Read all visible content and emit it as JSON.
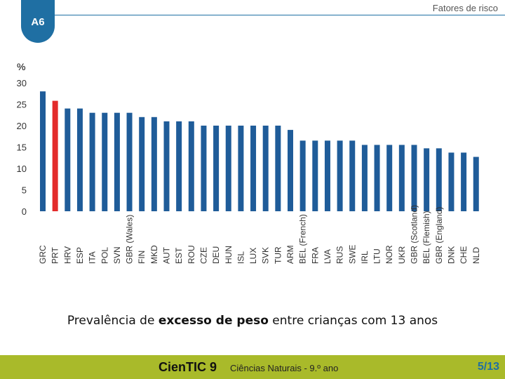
{
  "header": {
    "topic": "Fatores de risco",
    "badge": "A6"
  },
  "chart_data": {
    "type": "bar",
    "ylabel": "%",
    "ylim": [
      0,
      30
    ],
    "yticks": [
      0,
      5,
      10,
      15,
      20,
      25,
      30
    ],
    "highlight_color": "#e32b2b",
    "bar_color": "#1f5c99",
    "categories": [
      "GRC",
      "PRT",
      "HRV",
      "ESP",
      "ITA",
      "POL",
      "SVN",
      "GBR (Wales)",
      "FIN",
      "MKD",
      "AUT",
      "EST",
      "ROU",
      "CZE",
      "DEU",
      "HUN",
      "ISL",
      "LUX",
      "SVK",
      "TUR",
      "ARM",
      "BEL (French)",
      "FRA",
      "LVA",
      "RUS",
      "SWE",
      "IRL",
      "LTU",
      "NOR",
      "UKR",
      "GBR (Scotland)",
      "BEL (Flemish)",
      "GBR (England)",
      "DNK",
      "CHE",
      "NLD"
    ],
    "values": [
      28,
      25.8,
      24,
      24,
      23,
      23,
      23,
      23,
      22,
      22,
      21,
      21,
      21,
      20,
      20,
      20,
      20,
      20,
      20,
      20,
      19,
      16.5,
      16.5,
      16.5,
      16.5,
      16.5,
      15.5,
      15.5,
      15.5,
      15.5,
      15.5,
      14.7,
      14.7,
      13.7,
      13.7,
      12.7
    ],
    "highlight": "PRT",
    "caption": {
      "before": "Prevalência de ",
      "bold": "excesso de peso",
      "after": " entre crianças com 13 anos"
    }
  },
  "footer": {
    "brand_bold": "Cien",
    "brand_rest": "TIC 9",
    "subject": "Ciências Naturais - 9.º ano",
    "page": "5/13"
  }
}
